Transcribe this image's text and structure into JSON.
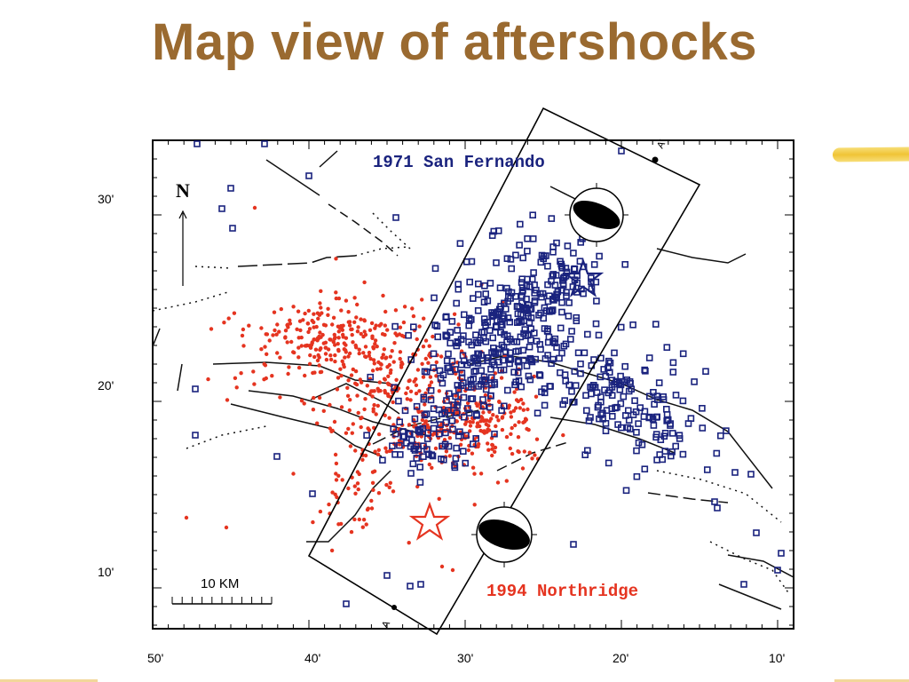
{
  "slide": {
    "title": "Map view of aftershocks"
  },
  "map": {
    "label_1971": "1971 San Fernando",
    "label_1994": "1994 Northridge",
    "north_label": "N",
    "scale_label": "10 KM",
    "profile_end_top": "A'",
    "profile_end_bottom": "A",
    "lat_ticks": [
      "30'",
      "20'",
      "10'"
    ],
    "lon_ticks": [
      "50'",
      "40'",
      "30'",
      "20'",
      "10'"
    ],
    "colors": {
      "san_fernando": "#1a237e",
      "northridge": "#e53420",
      "title": "#9a6a30",
      "highlight": "#f0c436"
    },
    "symbols": {
      "san_fernando": "square",
      "northridge": "dot",
      "mainshock": "star-icon",
      "focal_mechanism": "beachball-icon"
    }
  }
}
